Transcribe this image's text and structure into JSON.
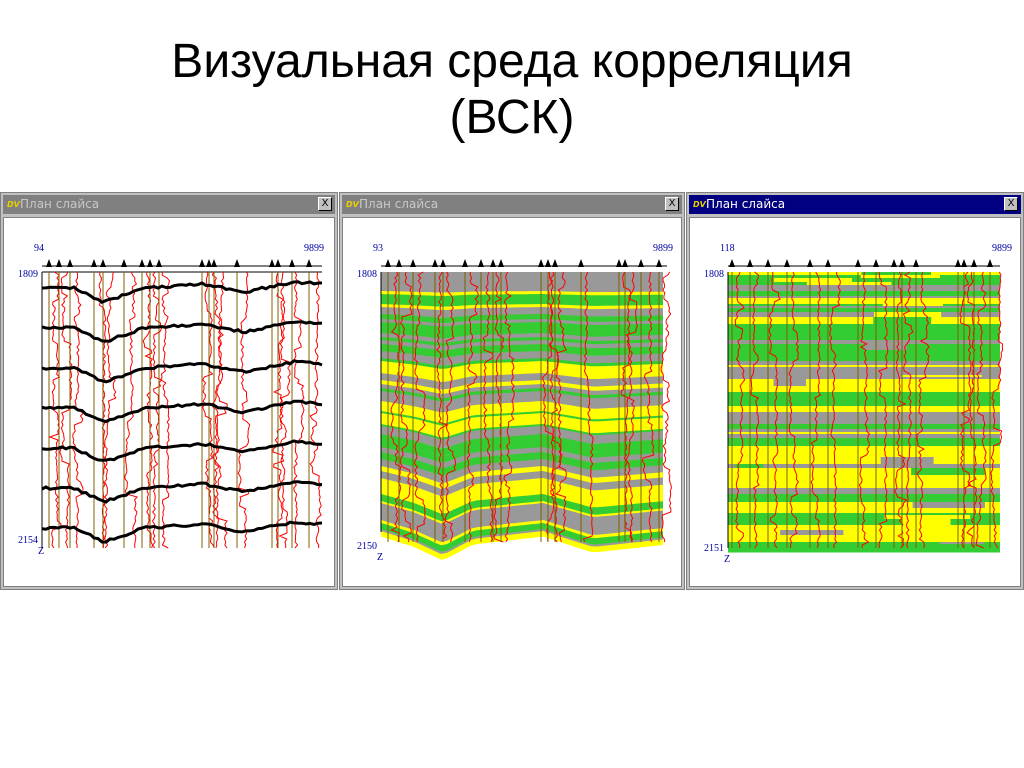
{
  "slide": {
    "title_line1": "Визуальная среда корреляция",
    "title_line2": "(ВСК)"
  },
  "windows": [
    {
      "title": "План слайса",
      "icon": "dv-app-icon",
      "close_label": "X",
      "active": false,
      "style": "wiggle-horizons",
      "x_start": "94",
      "x_end": "9899",
      "depth_top": "1809",
      "depth_bottom": "2154",
      "depth_axis_label": "Z"
    },
    {
      "title": "План слайса",
      "icon": "dv-app-icon",
      "close_label": "X",
      "active": false,
      "style": "colored-section",
      "x_start": "93",
      "x_end": "9899",
      "depth_top": "1808",
      "depth_bottom": "2150",
      "depth_axis_label": "Z"
    },
    {
      "title": "План слайса",
      "icon": "dv-app-icon",
      "close_label": "X",
      "active": true,
      "style": "flattened-section",
      "x_start": "118",
      "x_end": "9899",
      "depth_top": "1808",
      "depth_bottom": "2151",
      "depth_axis_label": "Z"
    }
  ],
  "colors": {
    "active_title": "#000080",
    "inactive_title": "#808080",
    "log_curve": "#ff0000",
    "horizon": "#000000",
    "sand": "#ffff00",
    "shale": "#33cc33",
    "silt": "#999999",
    "well_stick": "#806000"
  }
}
